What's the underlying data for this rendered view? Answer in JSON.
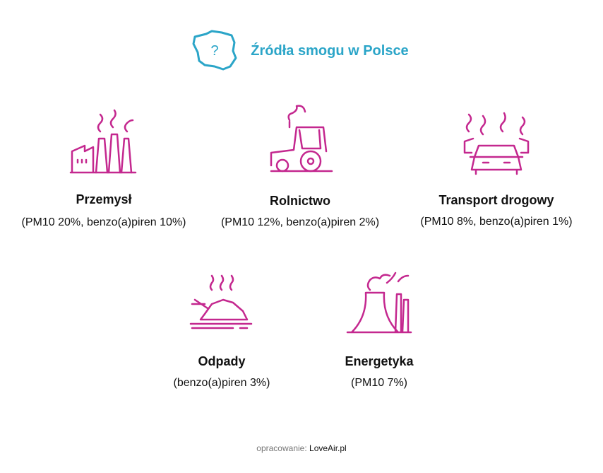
{
  "header": {
    "title": "Źródła smogu w Polsce",
    "icon_label": "?"
  },
  "items": [
    {
      "title": "Przemysł",
      "detail": "(PM10 20%, benzo(a)piren 10%)"
    },
    {
      "title": "Rolnictwo",
      "detail": "(PM10 12%, benzo(a)piren 2%)"
    },
    {
      "title": "Transport drogowy",
      "detail": "(PM10 8%, benzo(a)piren 1%)"
    },
    {
      "title": "Odpady",
      "detail": "(benzo(a)piren 3%)"
    },
    {
      "title": "Energetyka",
      "detail": "(PM10 7%)"
    }
  ],
  "footer": {
    "label": "opracowanie:",
    "source": "LoveAir.pl"
  }
}
